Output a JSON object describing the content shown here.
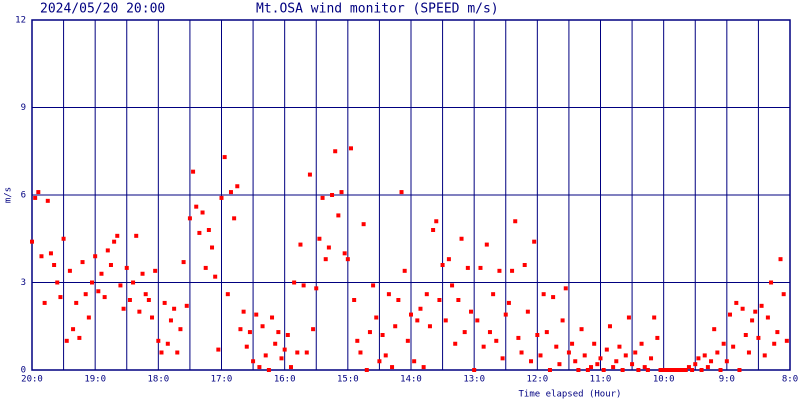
{
  "chart_data": {
    "type": "scatter",
    "timestamp": "2024/05/20 20:00",
    "title": "Mt.OSA wind monitor (SPEED m/s)",
    "ylabel": "m/s",
    "xlabel": "Time elapsed (Hour)",
    "color": "#ff0000",
    "grid_color": "#000080",
    "grid": true,
    "xlim": [
      0,
      12
    ],
    "ylim": [
      0,
      12
    ],
    "yticks": [
      0,
      3,
      6,
      9,
      12
    ],
    "xticks": [
      {
        "value": 0,
        "label": "20:0"
      },
      {
        "value": 1,
        "label": "19:0"
      },
      {
        "value": 2,
        "label": "18:0"
      },
      {
        "value": 3,
        "label": "17:0"
      },
      {
        "value": 4,
        "label": "16:0"
      },
      {
        "value": 5,
        "label": "15:0"
      },
      {
        "value": 6,
        "label": "14:0"
      },
      {
        "value": 7,
        "label": "13:0"
      },
      {
        "value": 8,
        "label": "12:0"
      },
      {
        "value": 9,
        "label": "11:0"
      },
      {
        "value": 10,
        "label": "10:0"
      },
      {
        "value": 11,
        "label": "9:0"
      },
      {
        "value": 12,
        "label": "8:0"
      }
    ],
    "xgrid_minor": [
      0.5,
      1.5,
      2.5,
      3.5,
      4.5,
      5.5,
      6.5,
      7.5,
      8.5,
      9.5,
      10.5,
      11.5
    ],
    "x": [
      0,
      0.05,
      0.1,
      0.15,
      0.2,
      0.25,
      0.3,
      0.35,
      0.4,
      0.45,
      0.5,
      0.55,
      0.6,
      0.65,
      0.7,
      0.75,
      0.8,
      0.85,
      0.9,
      0.95,
      1,
      1.05,
      1.1,
      1.15,
      1.2,
      1.25,
      1.3,
      1.35,
      1.4,
      1.45,
      1.5,
      1.55,
      1.6,
      1.65,
      1.7,
      1.75,
      1.8,
      1.85,
      1.9,
      1.95,
      2,
      2.05,
      2.1,
      2.15,
      2.2,
      2.25,
      2.3,
      2.35,
      2.4,
      2.45,
      2.5,
      2.55,
      2.6,
      2.65,
      2.7,
      2.75,
      2.8,
      2.85,
      2.9,
      2.95,
      3,
      3.05,
      3.1,
      3.15,
      3.2,
      3.25,
      3.3,
      3.35,
      3.4,
      3.45,
      3.5,
      3.55,
      3.6,
      3.65,
      3.7,
      3.75,
      3.8,
      3.85,
      3.9,
      3.95,
      4,
      4.05,
      4.1,
      4.15,
      4.2,
      4.25,
      4.3,
      4.35,
      4.4,
      4.45,
      4.5,
      4.55,
      4.6,
      4.65,
      4.7,
      4.75,
      4.8,
      4.85,
      4.9,
      4.95,
      5,
      5.05,
      5.1,
      5.15,
      5.2,
      5.25,
      5.3,
      5.35,
      5.4,
      5.45,
      5.5,
      5.55,
      5.6,
      5.65,
      5.7,
      5.75,
      5.8,
      5.85,
      5.9,
      5.95,
      6,
      6.05,
      6.1,
      6.15,
      6.2,
      6.25,
      6.3,
      6.35,
      6.4,
      6.45,
      6.5,
      6.55,
      6.6,
      6.65,
      6.7,
      6.75,
      6.8,
      6.85,
      6.9,
      6.95,
      7,
      7.05,
      7.1,
      7.15,
      7.2,
      7.25,
      7.3,
      7.35,
      7.4,
      7.45,
      7.5,
      7.55,
      7.6,
      7.65,
      7.7,
      7.75,
      7.8,
      7.85,
      7.9,
      7.95,
      8,
      8.05,
      8.1,
      8.15,
      8.2,
      8.25,
      8.3,
      8.35,
      8.4,
      8.45,
      8.5,
      8.55,
      8.6,
      8.65,
      8.7,
      8.75,
      8.8,
      8.85,
      8.9,
      8.95,
      9,
      9.05,
      9.1,
      9.15,
      9.2,
      9.25,
      9.3,
      9.35,
      9.4,
      9.45,
      9.5,
      9.55,
      9.6,
      9.65,
      9.7,
      9.75,
      9.8,
      9.85,
      9.9,
      9.95,
      10,
      10.05,
      10.1,
      10.15,
      10.2,
      10.25,
      10.3,
      10.35,
      10.4,
      10.45,
      10.5,
      10.55,
      10.6,
      10.65,
      10.7,
      10.75,
      10.8,
      10.85,
      10.9,
      10.95,
      11,
      11.05,
      11.1,
      11.15,
      11.2,
      11.25,
      11.3,
      11.35,
      11.4,
      11.45,
      11.5,
      11.55,
      11.6,
      11.65,
      11.7,
      11.75,
      11.8,
      11.85,
      11.9,
      11.95
    ],
    "values": [
      4.4,
      5.9,
      6.1,
      3.9,
      2.3,
      5.8,
      4.0,
      3.6,
      3.0,
      2.5,
      4.5,
      1.0,
      3.4,
      1.4,
      2.3,
      1.1,
      3.7,
      2.6,
      1.8,
      3.0,
      3.9,
      2.7,
      3.3,
      2.5,
      4.1,
      3.6,
      4.4,
      4.6,
      2.9,
      2.1,
      3.5,
      2.4,
      3.0,
      4.6,
      2.0,
      3.3,
      2.6,
      2.4,
      1.8,
      3.4,
      1.0,
      0.6,
      2.3,
      0.9,
      1.7,
      2.1,
      0.6,
      1.4,
      3.7,
      2.2,
      5.2,
      6.8,
      5.6,
      4.7,
      5.4,
      3.5,
      4.8,
      4.2,
      3.2,
      0.7,
      5.9,
      7.3,
      2.6,
      6.1,
      5.2,
      6.3,
      1.4,
      2.0,
      0.8,
      1.3,
      0.3,
      1.9,
      0.1,
      1.5,
      0.5,
      0.0,
      1.8,
      0.9,
      1.3,
      0.4,
      0.7,
      1.2,
      0.1,
      3.0,
      0.6,
      4.3,
      2.9,
      0.6,
      6.7,
      1.4,
      2.8,
      4.5,
      5.9,
      3.8,
      4.2,
      6.0,
      7.5,
      5.3,
      6.1,
      4.0,
      3.8,
      7.6,
      2.4,
      1.0,
      0.6,
      5.0,
      0.0,
      1.3,
      2.9,
      1.8,
      0.3,
      1.2,
      0.5,
      2.6,
      0.1,
      1.5,
      2.4,
      6.1,
      3.4,
      1.0,
      1.9,
      0.3,
      1.7,
      2.1,
      0.1,
      2.6,
      1.5,
      4.8,
      5.1,
      2.4,
      3.6,
      1.7,
      3.8,
      2.9,
      0.9,
      2.4,
      4.5,
      1.3,
      3.5,
      2.0,
      0.0,
      1.7,
      3.5,
      0.8,
      4.3,
      1.3,
      2.6,
      1.0,
      3.4,
      0.4,
      1.9,
      2.3,
      3.4,
      5.1,
      1.1,
      0.6,
      3.6,
      2.0,
      0.3,
      4.4,
      1.2,
      0.5,
      2.6,
      1.3,
      0.0,
      2.5,
      0.8,
      0.2,
      1.7,
      2.8,
      0.6,
      0.9,
      0.3,
      0.0,
      1.4,
      0.5,
      0.0,
      0.1,
      0.9,
      0.2,
      0.4,
      0.0,
      0.7,
      1.5,
      0.1,
      0.3,
      0.8,
      0.0,
      0.5,
      1.8,
      0.2,
      0.6,
      0.0,
      0.9,
      0.1,
      0.0,
      0.4,
      1.8,
      1.1,
      0.0,
      0.0,
      0.0,
      0.0,
      0.0,
      0.0,
      0.0,
      0.0,
      0.0,
      0.1,
      0.0,
      0.2,
      0.4,
      0.0,
      0.5,
      0.1,
      0.3,
      1.4,
      0.6,
      0.0,
      0.9,
      0.3,
      1.9,
      0.8,
      2.3,
      0.0,
      2.1,
      1.2,
      0.6,
      1.7,
      2.0,
      1.1,
      2.2,
      0.5,
      1.8,
      3.0,
      0.9,
      1.3,
      3.8,
      2.6,
      1.0
    ]
  }
}
